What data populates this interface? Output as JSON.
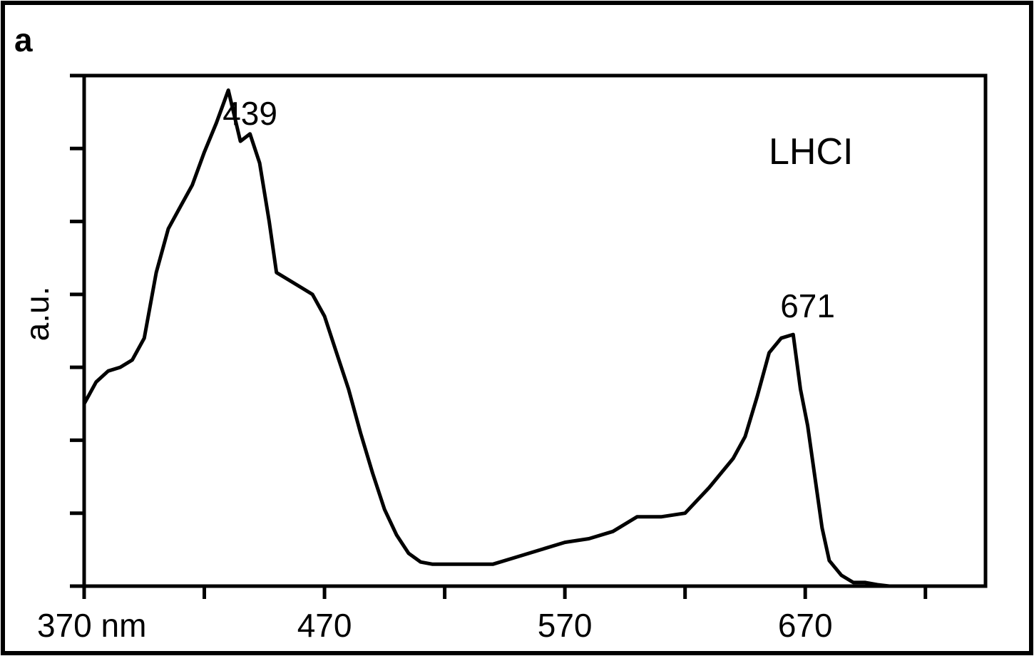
{
  "panel_label": "a",
  "chart_data": {
    "type": "line",
    "title": "",
    "inset_label": "LHCI",
    "xlabel": "",
    "ylabel": "a.u.",
    "x_unit": "nm",
    "xlim": [
      370,
      745
    ],
    "ylim": [
      0,
      7
    ],
    "x_tick_values": [
      370,
      420,
      470,
      520,
      570,
      620,
      670,
      720
    ],
    "x_tick_labels": [
      "370 nm",
      "",
      "470",
      "",
      "570",
      "",
      "670",
      ""
    ],
    "y_tick_count": 7,
    "grid": false,
    "legend": "none",
    "line_color": "#000000",
    "annotations": [
      {
        "text": "439",
        "x": 439
      },
      {
        "text": "671",
        "x": 671
      }
    ],
    "series": [
      {
        "x": [
          370,
          375,
          380,
          385,
          390,
          395,
          400,
          405,
          410,
          415,
          420,
          425,
          430,
          435,
          439,
          443,
          447,
          450,
          455,
          460,
          465,
          470,
          475,
          480,
          485,
          490,
          495,
          500,
          505,
          510,
          515,
          520,
          530,
          540,
          550,
          560,
          570,
          580,
          590,
          600,
          610,
          620,
          630,
          640,
          645,
          650,
          655,
          660,
          665,
          668,
          671,
          674,
          677,
          680,
          685,
          690,
          695,
          700,
          705,
          710,
          715,
          720,
          730,
          745
        ],
        "y": [
          2.5,
          2.8,
          2.95,
          3.0,
          3.1,
          3.4,
          4.3,
          4.9,
          5.2,
          5.5,
          5.95,
          6.35,
          6.8,
          6.1,
          6.2,
          5.8,
          5.0,
          4.3,
          4.2,
          4.1,
          4.0,
          3.7,
          3.2,
          2.7,
          2.1,
          1.55,
          1.05,
          0.7,
          0.45,
          0.33,
          0.3,
          0.3,
          0.3,
          0.3,
          0.4,
          0.5,
          0.6,
          0.65,
          0.75,
          0.95,
          0.95,
          1.0,
          1.35,
          1.75,
          2.05,
          2.6,
          3.2,
          3.4,
          3.45,
          2.7,
          2.2,
          1.5,
          0.8,
          0.35,
          0.15,
          0.05,
          0.05,
          0.02,
          0.0,
          0.0,
          0.0,
          0.0,
          0.0,
          0.0
        ]
      }
    ]
  }
}
